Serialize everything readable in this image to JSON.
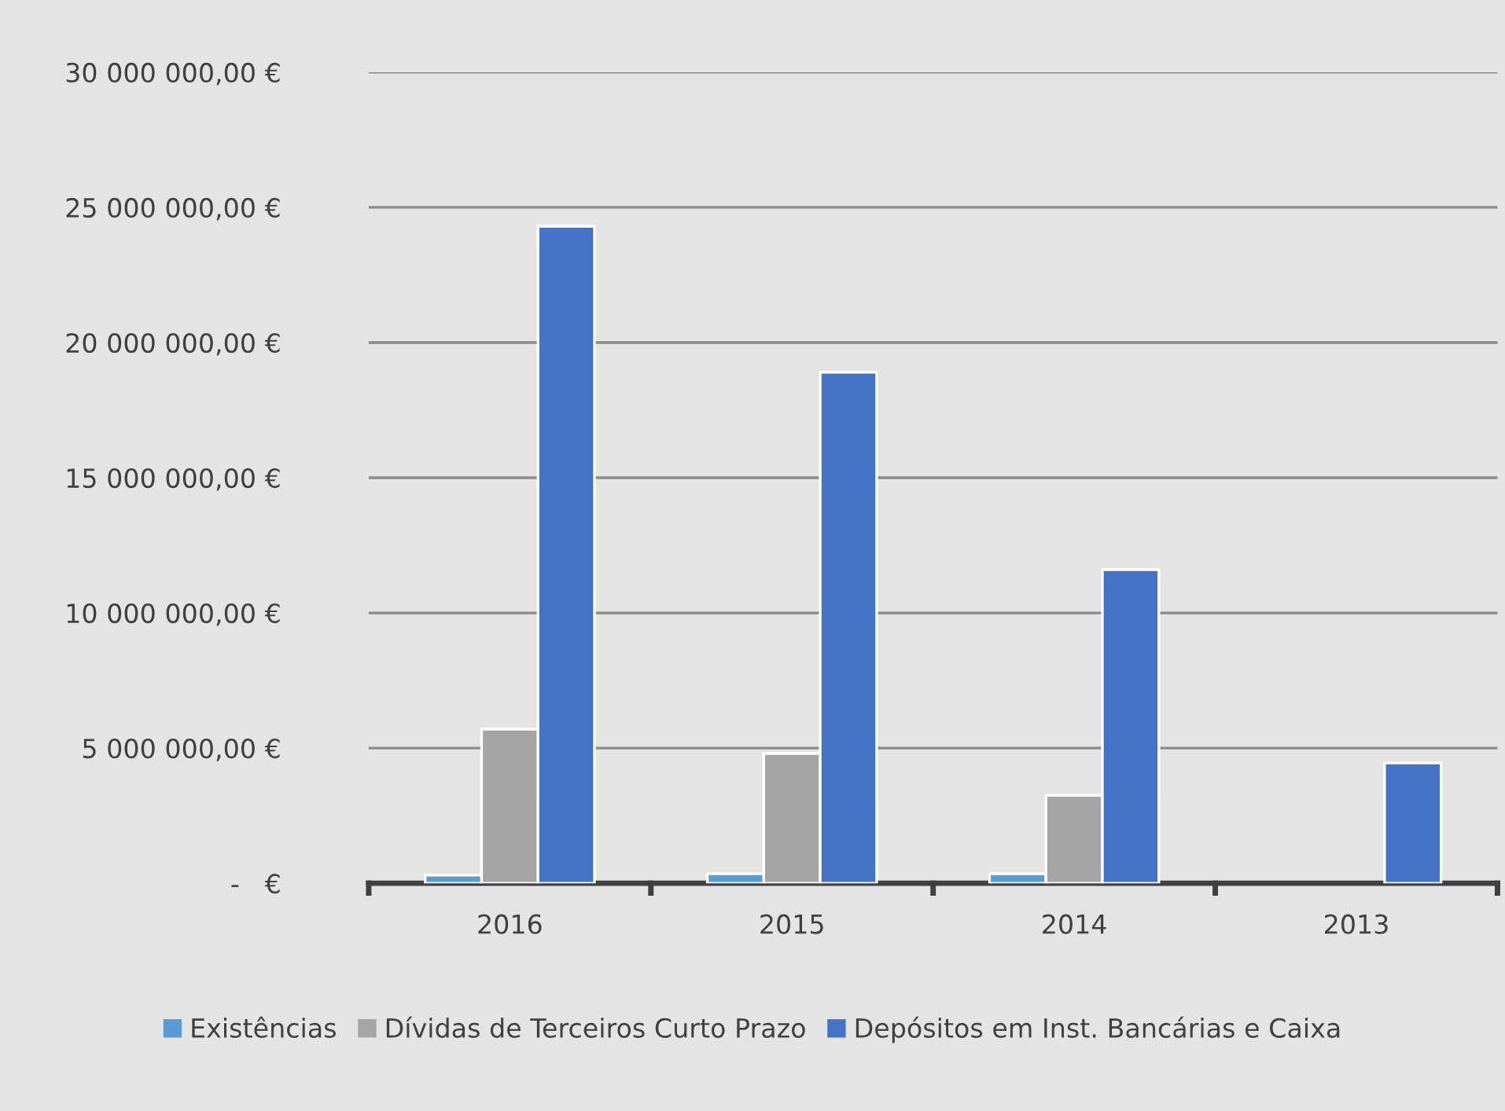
{
  "chart_data": {
    "type": "bar",
    "categories": [
      "2016",
      "2015",
      "2014",
      "2013"
    ],
    "series": [
      {
        "name": "Existências",
        "color": "#5b9bd5",
        "values": [
          300000,
          350000,
          350000,
          0
        ]
      },
      {
        "name": "Dívidas de Terceiros Curto Prazo",
        "color": "#a5a5a5",
        "values": [
          5700000,
          4800000,
          3250000,
          0
        ]
      },
      {
        "name": "Depósitos em Inst. Bancárias e Caixa",
        "color": "#4472c4",
        "values": [
          24300000,
          18900000,
          11600000,
          4450000
        ]
      }
    ],
    "ylim": [
      0,
      30000000
    ],
    "yticks": [
      {
        "value": 0,
        "label": "-   €"
      },
      {
        "value": 5000000,
        "label": "5 000 000,00 €"
      },
      {
        "value": 10000000,
        "label": "10 000 000,00 €"
      },
      {
        "value": 15000000,
        "label": "15 000 000,00 €"
      },
      {
        "value": 20000000,
        "label": "20 000 000,00 €"
      },
      {
        "value": 25000000,
        "label": "25 000 000,00 €"
      },
      {
        "value": 30000000,
        "label": "30 000 000,00 €"
      }
    ],
    "grid": "y",
    "legend": "bottom"
  }
}
